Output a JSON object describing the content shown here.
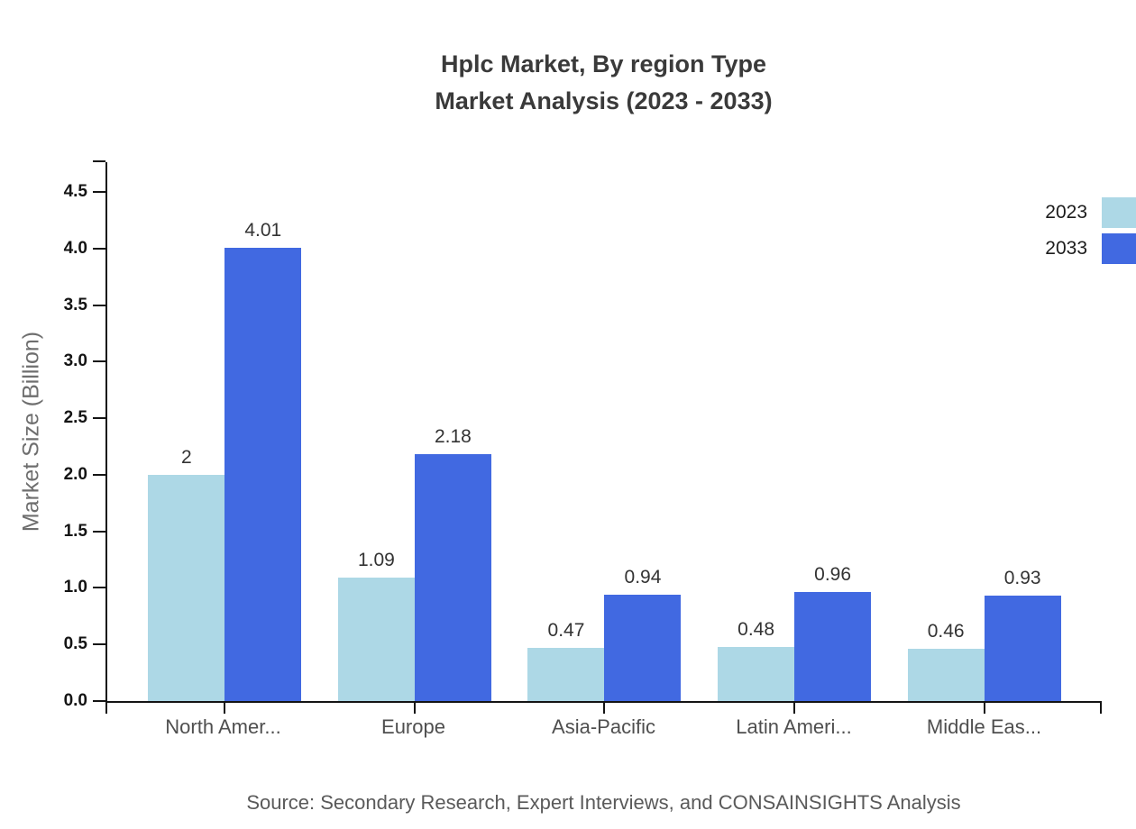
{
  "title": {
    "line1": "Hplc Market, By region Type",
    "line2": "Market Analysis (2023 - 2033)"
  },
  "source_note": "Source: Secondary Research, Expert Interviews, and CONSAINSIGHTS Analysis",
  "chart_data": {
    "type": "bar",
    "title": "Hplc Market, By region Type Market Analysis (2023 - 2033)",
    "categories": [
      "North Amer...",
      "Europe",
      "Asia-Pacific",
      "Latin Ameri...",
      "Middle Eas..."
    ],
    "series": [
      {
        "name": "2023",
        "color": "#ADD8E6",
        "values": [
          2,
          1.09,
          0.47,
          0.48,
          0.46
        ],
        "labels": [
          "2",
          "1.09",
          "0.47",
          "0.48",
          "0.46"
        ]
      },
      {
        "name": "2033",
        "color": "#4169E1",
        "values": [
          4.01,
          2.18,
          0.94,
          0.96,
          0.93
        ],
        "labels": [
          "4.01",
          "2.18",
          "0.94",
          "0.96",
          "0.93"
        ]
      }
    ],
    "xlabel": "",
    "ylabel": "Market Size (Billion)",
    "ylim": [
      0,
      4.75
    ],
    "yticks": [
      0.0,
      0.5,
      1.0,
      1.5,
      2.0,
      2.5,
      3.0,
      3.5,
      4.0,
      4.5
    ],
    "ytick_labels": [
      "0.0",
      "0.5",
      "1.0",
      "1.5",
      "2.0",
      "2.5",
      "3.0",
      "3.5",
      "4.0",
      "4.5"
    ],
    "grid": false,
    "legend_position": "top-right",
    "axis_color": "#141414"
  }
}
